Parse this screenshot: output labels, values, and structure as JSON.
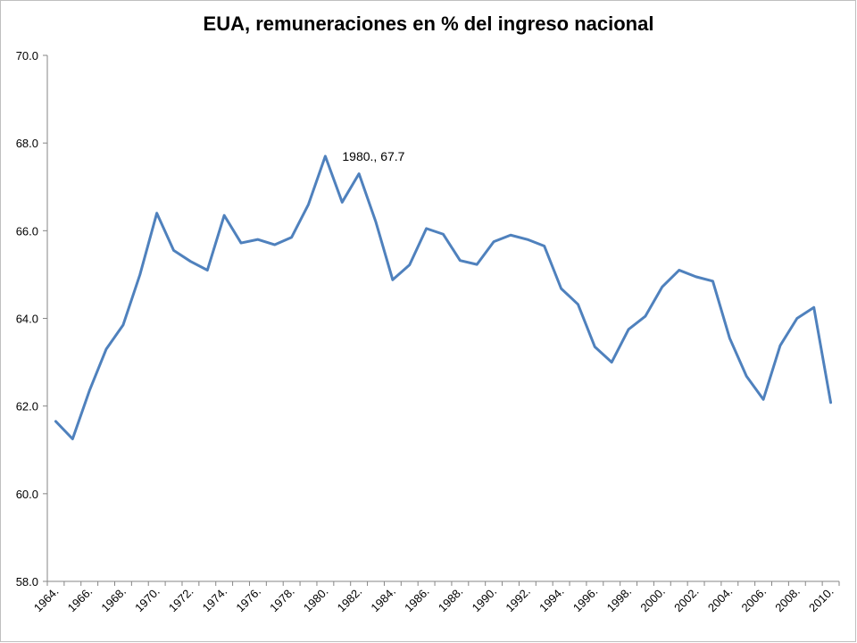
{
  "chart_data": {
    "type": "line",
    "title": "EUA, remuneraciones en % del ingreso nacional",
    "xlabel": "",
    "ylabel": "",
    "ylim": [
      58.0,
      70.0
    ],
    "yticks": [
      "58.0",
      "60.0",
      "62.0",
      "64.0",
      "66.0",
      "68.0",
      "70.0"
    ],
    "grid": false,
    "x": [
      1964,
      1965,
      1966,
      1967,
      1968,
      1969,
      1970,
      1971,
      1972,
      1973,
      1974,
      1975,
      1976,
      1977,
      1978,
      1979,
      1980,
      1981,
      1982,
      1983,
      1984,
      1985,
      1986,
      1987,
      1988,
      1989,
      1990,
      1991,
      1992,
      1993,
      1994,
      1995,
      1996,
      1997,
      1998,
      1999,
      2000,
      2001,
      2002,
      2003,
      2004,
      2005,
      2006,
      2007,
      2008,
      2009,
      2010
    ],
    "xtick_labels": [
      "1964.",
      "1966.",
      "1968.",
      "1970.",
      "1972.",
      "1974.",
      "1976.",
      "1978.",
      "1980.",
      "1982.",
      "1984.",
      "1986.",
      "1988.",
      "1990.",
      "1992.",
      "1994.",
      "1996.",
      "1998.",
      "2000.",
      "2002.",
      "2004.",
      "2006.",
      "2008.",
      "2010."
    ],
    "series": [
      {
        "values": [
          61.65,
          61.25,
          62.35,
          63.3,
          63.85,
          65.0,
          66.4,
          65.55,
          65.3,
          65.1,
          66.35,
          65.72,
          65.8,
          65.68,
          65.85,
          66.6,
          67.7,
          66.65,
          67.3,
          66.2,
          64.88,
          65.22,
          66.05,
          65.92,
          65.32,
          65.23,
          65.75,
          65.9,
          65.8,
          65.65,
          64.68,
          64.32,
          63.35,
          63.0,
          63.75,
          64.05,
          64.72,
          65.1,
          64.95,
          64.85,
          63.55,
          62.68,
          62.15,
          63.38,
          64.0,
          64.25,
          62.08
        ],
        "color": "#4f81bd"
      }
    ],
    "annotations": [
      {
        "x": 1980,
        "y": 67.7,
        "text": "1980., 67.7"
      }
    ]
  }
}
